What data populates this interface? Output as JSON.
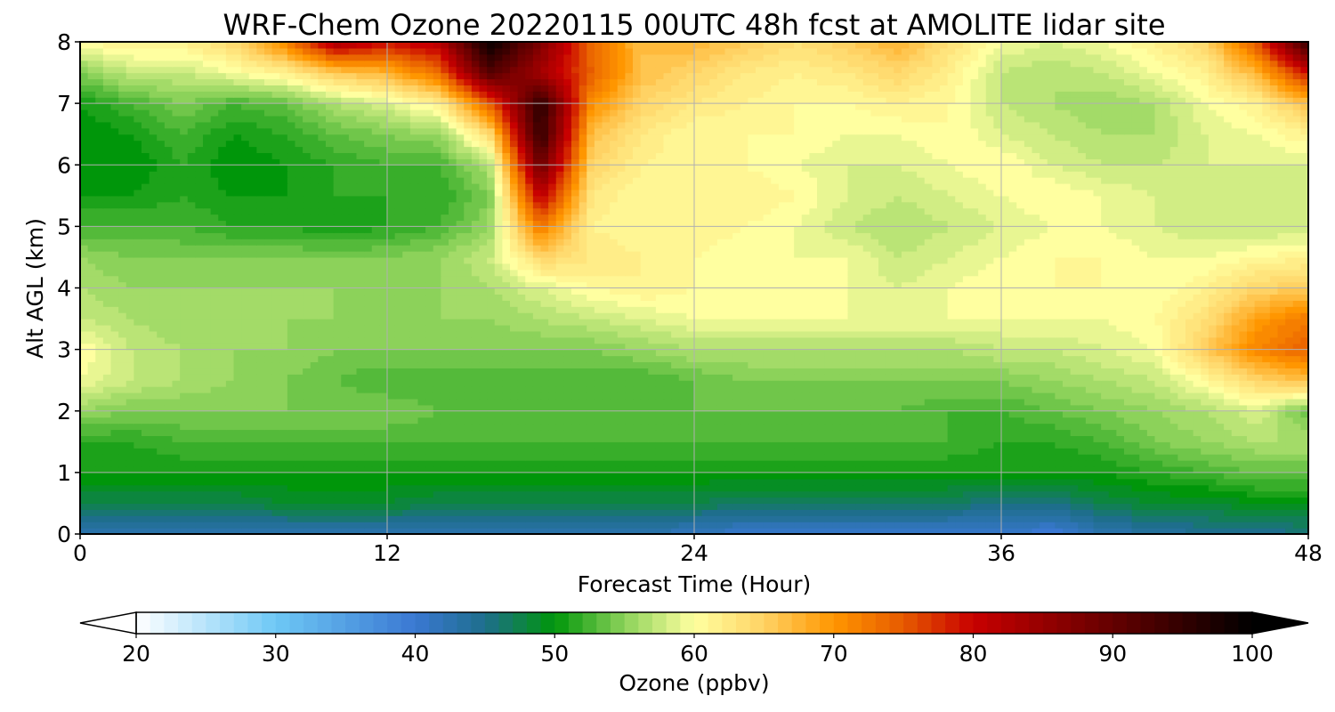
{
  "chart_data": {
    "type": "heatmap",
    "title": "WRF-Chem Ozone  20220115 00UTC 48h fcst at AMOLITE lidar site",
    "xlabel": "Forecast Time (Hour)",
    "ylabel": "Alt AGL (km)",
    "xlim": [
      0,
      48
    ],
    "ylim": [
      0,
      8
    ],
    "x_ticks": [
      "0",
      "12",
      "24",
      "36",
      "48"
    ],
    "y_ticks": [
      "0",
      "1",
      "2",
      "3",
      "4",
      "5",
      "6",
      "7",
      "8"
    ],
    "grid": true,
    "colorbar": {
      "label": "Ozone  (ppbv)",
      "range": [
        20,
        100
      ],
      "extend": "both",
      "ticks": [
        "20",
        "30",
        "40",
        "50",
        "60",
        "70",
        "80",
        "90",
        "100"
      ],
      "stops": [
        {
          "v": 20,
          "c": "#ffffff"
        },
        {
          "v": 30,
          "c": "#6ec8f5"
        },
        {
          "v": 40,
          "c": "#3a78d2"
        },
        {
          "v": 45,
          "c": "#1e6e8c"
        },
        {
          "v": 50,
          "c": "#00960a"
        },
        {
          "v": 55,
          "c": "#8cd25a"
        },
        {
          "v": 60,
          "c": "#ffffa0"
        },
        {
          "v": 65,
          "c": "#ffd264"
        },
        {
          "v": 70,
          "c": "#ff9600"
        },
        {
          "v": 75,
          "c": "#e65a00"
        },
        {
          "v": 80,
          "c": "#c80000"
        },
        {
          "v": 90,
          "c": "#640000"
        },
        {
          "v": 100,
          "c": "#000000"
        }
      ]
    },
    "x_hours": [
      0,
      2,
      4,
      6,
      8,
      10,
      12,
      14,
      16,
      18,
      20,
      22,
      24,
      26,
      28,
      30,
      32,
      34,
      36,
      38,
      40,
      42,
      44,
      46,
      48
    ],
    "z_km": [
      0,
      0.5,
      1,
      1.5,
      2,
      2.5,
      3,
      3.5,
      4,
      4.5,
      5,
      5.5,
      6,
      6.5,
      7,
      7.5,
      8
    ],
    "ozone_ppbv": [
      [
        43,
        43,
        43,
        43,
        43,
        43,
        43,
        43,
        43,
        43,
        43,
        43,
        42,
        41,
        41,
        41,
        41,
        41,
        41,
        40,
        43,
        44,
        45,
        45,
        46
      ],
      [
        48,
        48,
        48,
        48,
        49,
        49,
        49,
        48,
        48,
        48,
        48,
        48,
        48,
        47,
        47,
        47,
        47,
        47,
        46,
        46,
        48,
        49,
        49,
        50,
        50
      ],
      [
        51,
        51,
        51,
        51,
        51,
        51,
        51,
        51,
        51,
        51,
        51,
        51,
        51,
        51,
        51,
        51,
        51,
        51,
        51,
        51,
        51,
        52,
        53,
        54,
        54
      ],
      [
        52,
        52,
        53,
        53,
        53,
        53,
        53,
        53,
        53,
        53,
        53,
        53,
        53,
        53,
        53,
        53,
        53,
        53,
        52,
        52,
        53,
        55,
        56,
        57,
        57
      ],
      [
        56,
        55,
        55,
        55,
        55,
        55,
        55,
        54,
        54,
        54,
        54,
        54,
        54,
        54,
        54,
        54,
        54,
        53,
        53,
        54,
        55,
        56,
        57,
        59,
        54
      ],
      [
        60,
        58,
        57,
        56,
        55,
        54,
        53,
        53,
        53,
        53,
        53,
        53,
        54,
        55,
        55,
        55,
        55,
        55,
        55,
        56,
        57,
        58,
        61,
        65,
        67
      ],
      [
        61,
        58,
        57,
        56,
        56,
        55,
        55,
        55,
        55,
        55,
        55,
        56,
        57,
        57,
        57,
        57,
        57,
        57,
        58,
        58,
        59,
        60,
        66,
        72,
        75
      ],
      [
        58,
        57,
        56,
        56,
        56,
        56,
        56,
        56,
        56,
        57,
        58,
        59,
        60,
        60,
        60,
        60,
        60,
        60,
        60,
        60,
        60,
        61,
        64,
        70,
        73
      ],
      [
        57,
        56,
        56,
        56,
        56,
        56,
        55,
        56,
        57,
        59,
        61,
        62,
        61,
        60,
        60,
        60,
        59,
        60,
        61,
        61,
        61,
        60,
        62,
        65,
        66
      ],
      [
        56,
        55,
        55,
        55,
        55,
        55,
        55,
        56,
        58,
        65,
        63,
        62,
        61,
        60,
        60,
        60,
        58,
        59,
        60,
        61,
        61,
        60,
        60,
        61,
        62
      ],
      [
        53,
        53,
        53,
        52,
        52,
        51,
        52,
        53,
        56,
        73,
        62,
        61,
        62,
        61,
        60,
        58,
        57,
        58,
        59,
        60,
        60,
        59,
        58,
        58,
        58
      ],
      [
        51,
        51,
        52,
        51,
        51,
        52,
        52,
        52,
        55,
        82,
        63,
        61,
        61,
        62,
        61,
        59,
        58,
        59,
        60,
        61,
        60,
        59,
        59,
        58,
        58
      ],
      [
        50,
        50,
        52,
        50,
        51,
        52,
        53,
        53,
        57,
        90,
        65,
        62,
        61,
        61,
        60,
        59,
        59,
        60,
        61,
        59,
        58,
        58,
        59,
        59,
        59
      ],
      [
        50,
        51,
        53,
        51,
        52,
        54,
        55,
        56,
        64,
        96,
        67,
        63,
        61,
        61,
        61,
        60,
        60,
        61,
        59,
        58,
        57,
        57,
        59,
        60,
        62
      ],
      [
        51,
        53,
        55,
        53,
        54,
        57,
        59,
        62,
        75,
        96,
        71,
        65,
        63,
        62,
        61,
        61,
        62,
        61,
        58,
        57,
        56,
        57,
        60,
        62,
        67
      ],
      [
        55,
        58,
        58,
        60,
        62,
        66,
        68,
        74,
        92,
        84,
        75,
        67,
        65,
        63,
        62,
        63,
        65,
        62,
        58,
        57,
        58,
        60,
        62,
        68,
        80
      ],
      [
        61,
        62,
        62,
        65,
        72,
        84,
        80,
        82,
        100,
        88,
        74,
        67,
        68,
        66,
        64,
        66,
        68,
        64,
        60,
        59,
        60,
        62,
        65,
        76,
        95
      ]
    ]
  }
}
